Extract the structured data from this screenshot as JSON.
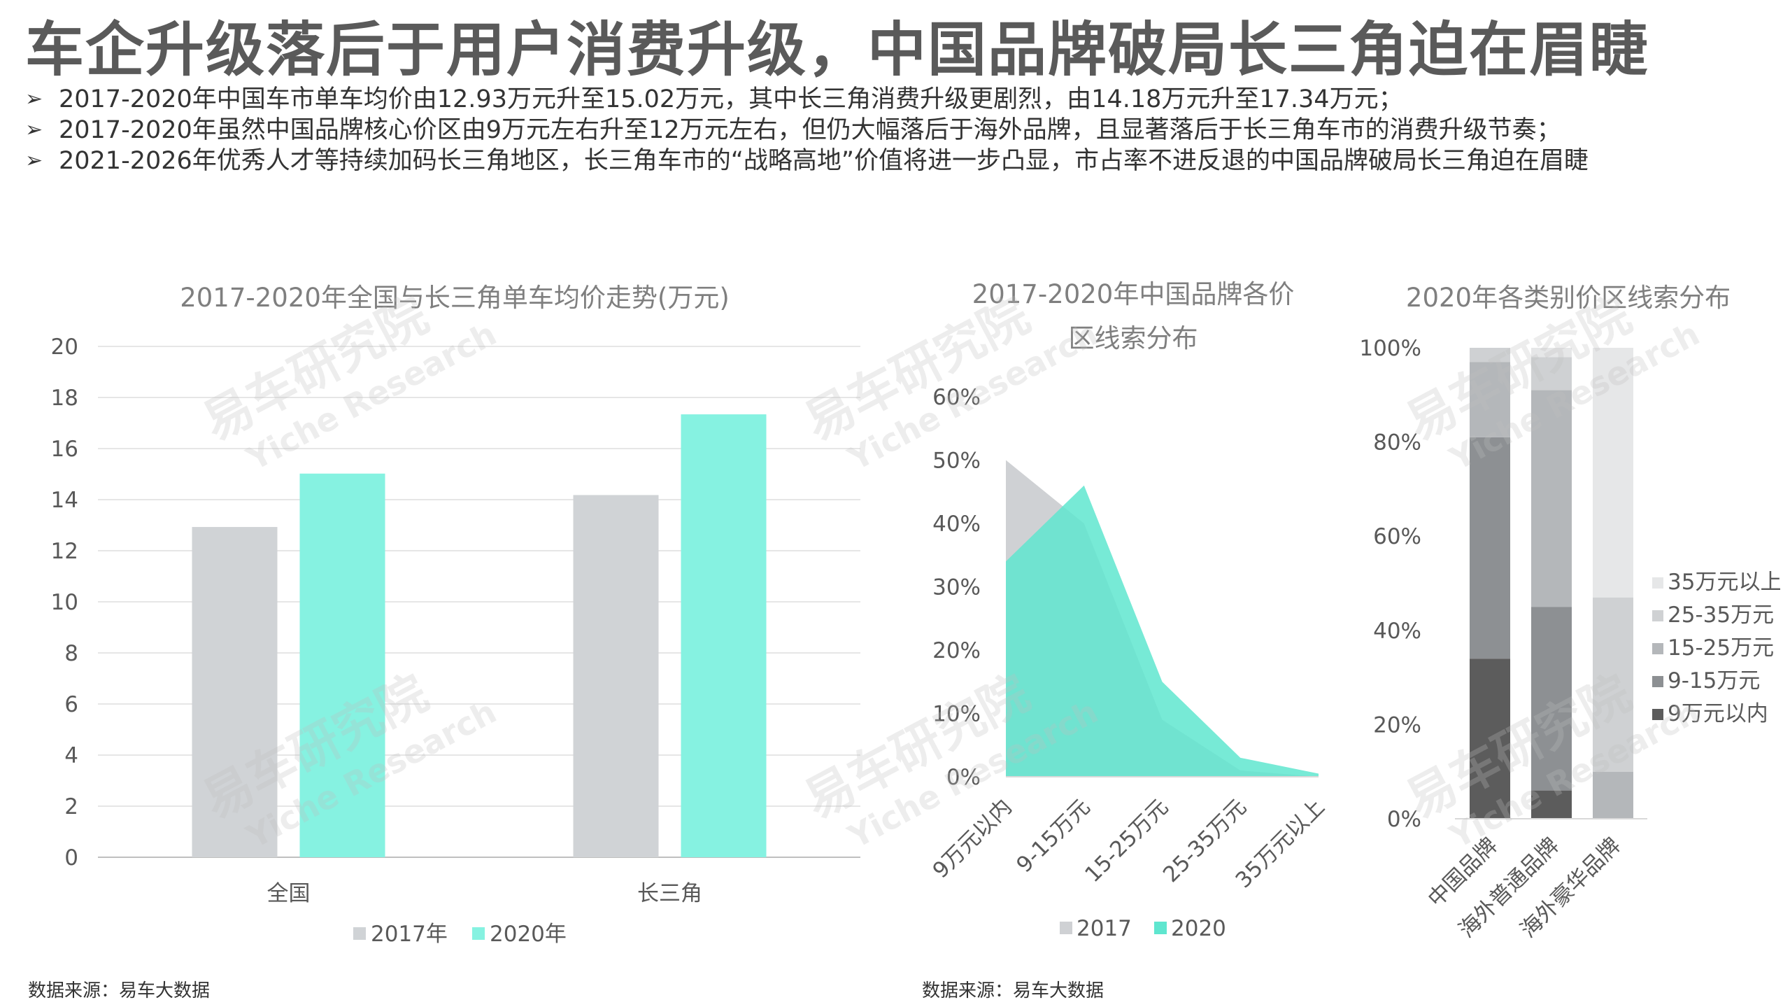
{
  "header": {
    "title": "车企升级落后于用户消费升级，中国品牌破局长三角迫在眉睫",
    "bullet_marker": "➢",
    "bullets": [
      "2017-2020年中国车市单车均价由12.93万元升至15.02万元，其中长三角消费升级更剧烈，由14.18万元升至17.34万元；",
      "2017-2020年虽然中国品牌核心价区由9万元左右升至12万元左右，但仍大幅落后于海外品牌，且显著落后于长三角车市的消费升级节奏；",
      "2021-2026年优秀人才等持续加码长三角地区，长三角车市的“战略高地”价值将进一步凸显，市占率不进反退的中国品牌破局长三角迫在眉睫"
    ]
  },
  "watermark": {
    "cn": "易车研究院",
    "en": "Yiche Research"
  },
  "sources": {
    "left": "数据来源：易车大数据",
    "right": "数据来源：易车大数据"
  },
  "chart_data": [
    {
      "type": "bar",
      "title": "2017-2020年全国与长三角单车均价走势(万元)",
      "categories": [
        "全国",
        "长三角"
      ],
      "series": [
        {
          "name": "2017年",
          "values": [
            12.93,
            14.18
          ],
          "color": "#d0d3d6"
        },
        {
          "name": "2020年",
          "values": [
            15.02,
            17.34
          ],
          "color": "#86f2e1"
        }
      ],
      "ylim": [
        0,
        20
      ],
      "yticks": [
        "0",
        "2",
        "4",
        "6",
        "8",
        "10",
        "12",
        "14",
        "16",
        "18",
        "20"
      ],
      "legend": "bottom",
      "grid": true
    },
    {
      "type": "area",
      "title_lines": [
        "2017-2020年中国品牌各价",
        "区线索分布"
      ],
      "categories": [
        "9万元以内",
        "9-15万元",
        "15-25万元",
        "25-35万元",
        "35万元以上"
      ],
      "series": [
        {
          "name": "2017",
          "values": [
            0.5,
            0.4,
            0.09,
            0.01,
            0.0
          ],
          "color": "#cfd1d4"
        },
        {
          "name": "2020",
          "values": [
            0.34,
            0.46,
            0.15,
            0.03,
            0.005
          ],
          "color": "#5fe6cf"
        }
      ],
      "ylim": [
        0,
        0.6
      ],
      "yticks": [
        "0%",
        "10%",
        "20%",
        "30%",
        "40%",
        "50%",
        "60%"
      ],
      "legend": "bottom",
      "grid": false
    },
    {
      "type": "bar",
      "stacked": true,
      "title": "2020年各类别价区线索分布",
      "categories": [
        "中国品牌",
        "海外普通品牌",
        "海外豪华品牌"
      ],
      "series": [
        {
          "name": "9万元以内",
          "values": [
            0.34,
            0.06,
            0.0
          ],
          "color": "#5c5c5c"
        },
        {
          "name": "9-15万元",
          "values": [
            0.47,
            0.39,
            0.0
          ],
          "color": "#8d9093"
        },
        {
          "name": "15-25万元",
          "values": [
            0.16,
            0.46,
            0.1
          ],
          "color": "#b4b7ba"
        },
        {
          "name": "25-35万元",
          "values": [
            0.03,
            0.07,
            0.37
          ],
          "color": "#cfd1d3"
        },
        {
          "name": "35万元以上",
          "values": [
            0.0,
            0.02,
            0.53
          ],
          "color": "#e6e7e8"
        }
      ],
      "ylim": [
        0,
        1
      ],
      "yticks": [
        "0%",
        "20%",
        "40%",
        "60%",
        "80%",
        "100%"
      ],
      "legend": "right",
      "grid": false
    }
  ]
}
